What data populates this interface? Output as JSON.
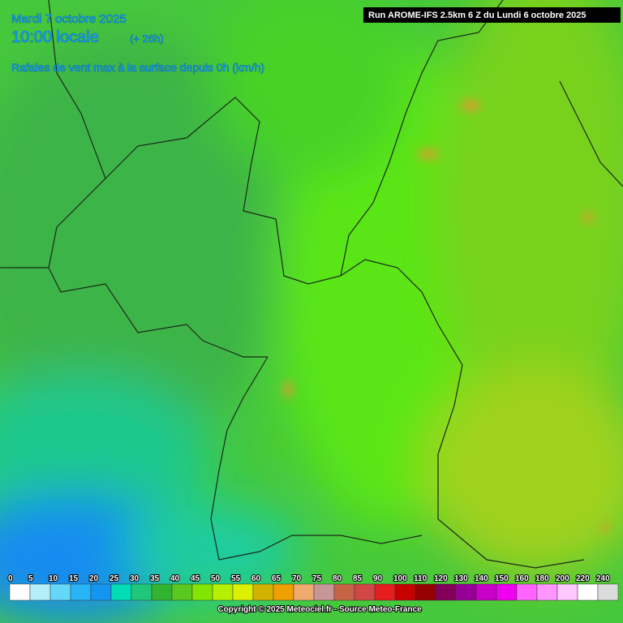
{
  "header": {
    "date": "Mardi 7 octobre 2025",
    "time": "10:00 locale",
    "lead": "(+ 26h)",
    "subtitle": "Rafales de vent max à la surface depuis 0h (km/h)"
  },
  "run_info": "Run AROME-IFS 2.5km 6 Z du Lundi 6 octobre 2025",
  "legend": {
    "values": [
      0,
      5,
      10,
      15,
      20,
      25,
      30,
      35,
      40,
      45,
      50,
      55,
      60,
      65,
      70,
      75,
      80,
      85,
      90,
      100,
      110,
      120,
      130,
      140,
      150,
      160,
      180,
      200,
      220,
      240
    ],
    "colors": [
      "#ffffff",
      "#b4f0fa",
      "#64d8f8",
      "#28b4f8",
      "#1496f0",
      "#00dcb4",
      "#1ec878",
      "#32b432",
      "#5ac81e",
      "#82e600",
      "#b4f000",
      "#dcf000",
      "#d2b400",
      "#f0a000",
      "#f0aa6e",
      "#c89696",
      "#c86446",
      "#d24646",
      "#e61e1e",
      "#c80000",
      "#960000",
      "#82005a",
      "#960096",
      "#c800c8",
      "#f000f0",
      "#ff64ff",
      "#ff96ff",
      "#ffc8ff",
      "#ffffff",
      "#dcdcdc"
    ]
  },
  "copyright": "Copyright © 2025 Meteociel.fr - Source Meteo-France"
}
